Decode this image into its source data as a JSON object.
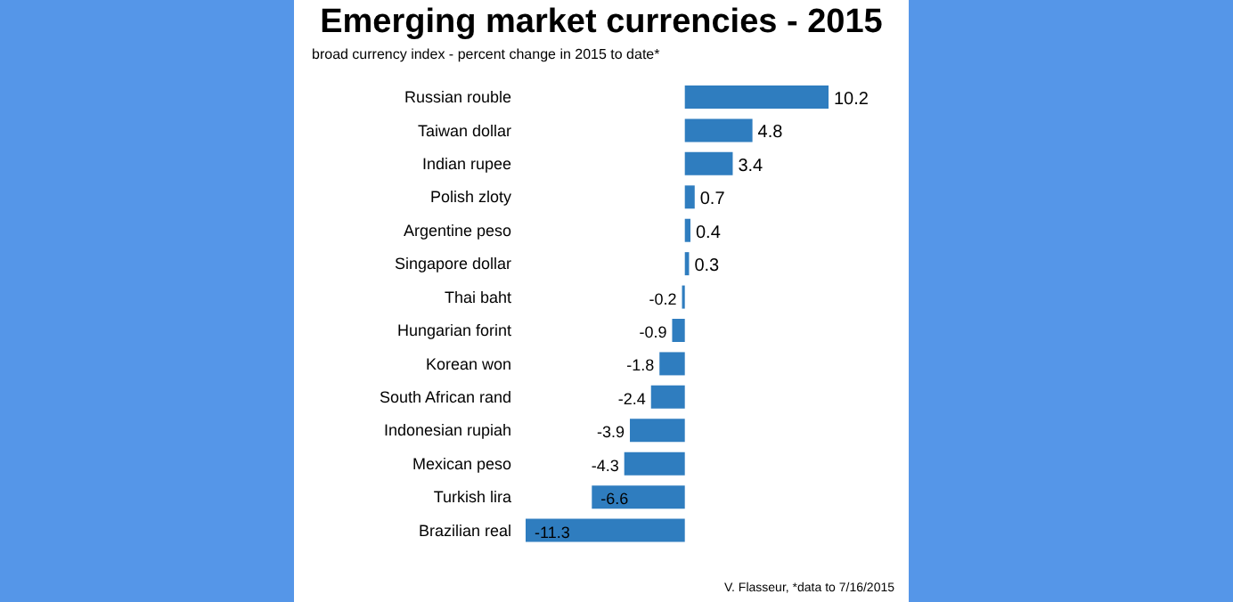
{
  "chart_data": {
    "type": "bar",
    "orientation": "horizontal",
    "title": "Emerging market currencies - 2015",
    "subtitle": "broad currency index - percent change in 2015 to date*",
    "categories": [
      "Russian rouble",
      "Taiwan dollar",
      "Indian rupee",
      "Polish zloty",
      "Argentine peso",
      "Singapore dollar",
      "Thai baht",
      "Hungarian forint",
      "Korean won",
      "South African rand",
      "Indonesian rupiah",
      "Mexican peso",
      "Turkish lira",
      "Brazilian real"
    ],
    "values": [
      10.2,
      4.8,
      3.4,
      0.7,
      0.4,
      0.3,
      -0.2,
      -0.9,
      -1.8,
      -2.4,
      -3.9,
      -4.3,
      -6.6,
      -11.3
    ],
    "color": "#2f7dbf",
    "data_labels": true,
    "annotations": [
      "V. Flasseur, *data to 7/16/2015"
    ]
  }
}
